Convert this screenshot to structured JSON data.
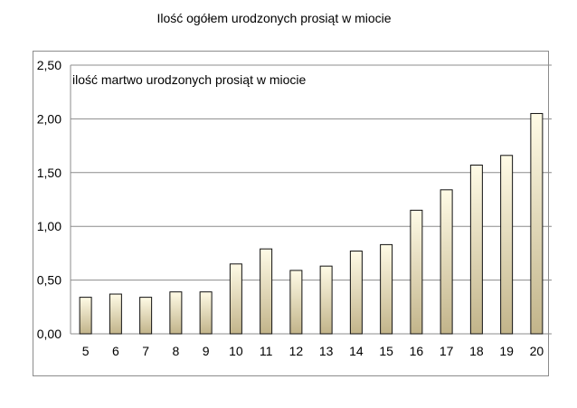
{
  "chart_data": {
    "type": "bar",
    "title": "Ilość ogółem urodzonych prosiąt w miocie",
    "ylabel": "ilość martwo urodzonych prosiąt w miocie",
    "xlabel": "",
    "categories": [
      "5",
      "6",
      "7",
      "8",
      "9",
      "10",
      "11",
      "12",
      "13",
      "14",
      "15",
      "16",
      "17",
      "18",
      "19",
      "20"
    ],
    "values": [
      0.34,
      0.37,
      0.34,
      0.39,
      0.39,
      0.65,
      0.79,
      0.59,
      0.63,
      0.77,
      0.83,
      1.15,
      1.34,
      1.57,
      1.66,
      2.05
    ],
    "ylim": [
      0,
      2.5
    ],
    "yticks": [
      "0,00",
      "0,50",
      "1,00",
      "1,50",
      "2,00",
      "2,50"
    ],
    "grid": true,
    "colors": {
      "bar_top": "#fffbe6",
      "bar_bottom": "#c2b48a",
      "bar_stroke": "#111111",
      "grid": "#8c8c8c"
    }
  }
}
